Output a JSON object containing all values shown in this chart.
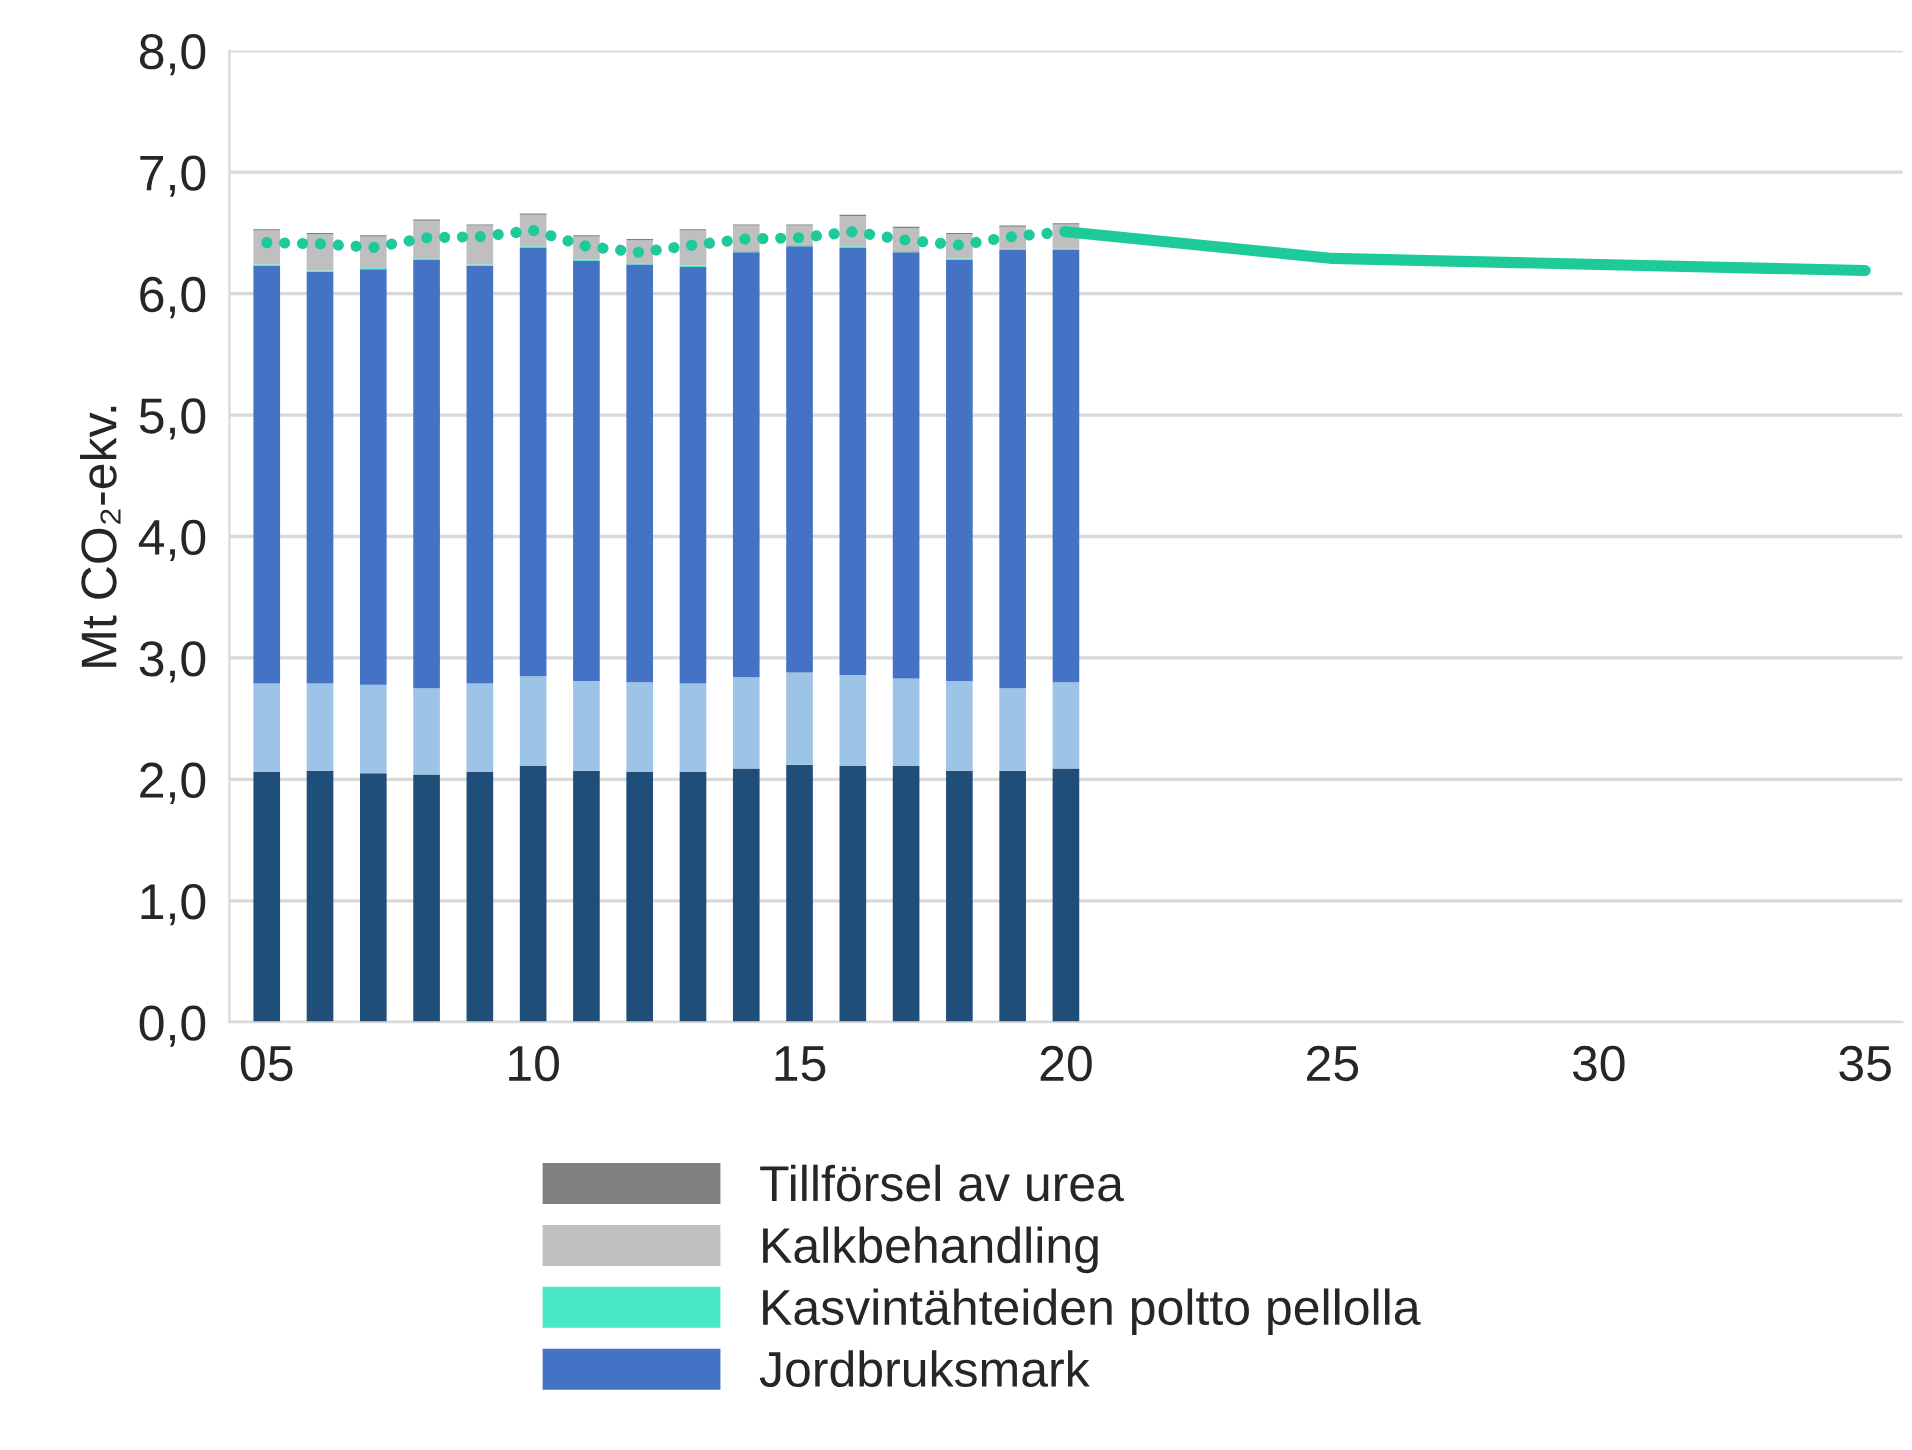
{
  "chart_data": {
    "type": "bar",
    "stacked": true,
    "ylabel": "Mt CO₂-ekv.",
    "x": [
      5,
      6,
      7,
      8,
      9,
      10,
      11,
      12,
      13,
      14,
      15,
      16,
      17,
      18,
      19,
      20
    ],
    "series": [
      {
        "color": "#1f4e79",
        "values": [
          2.06,
          2.07,
          2.05,
          2.04,
          2.06,
          2.11,
          2.07,
          2.06,
          2.06,
          2.09,
          2.12,
          2.11,
          2.11,
          2.07,
          2.07,
          2.09
        ]
      },
      {
        "color": "#9dc3e6",
        "values": [
          0.73,
          0.72,
          0.73,
          0.71,
          0.73,
          0.74,
          0.74,
          0.74,
          0.73,
          0.75,
          0.76,
          0.75,
          0.72,
          0.74,
          0.68,
          0.71
        ]
      },
      {
        "name": "Jordbruksmark",
        "color": "#4472c4",
        "values": [
          3.44,
          3.39,
          3.42,
          3.53,
          3.44,
          3.53,
          3.46,
          3.44,
          3.43,
          3.5,
          3.51,
          3.52,
          3.51,
          3.47,
          3.61,
          3.56
        ]
      },
      {
        "name": "Kasvintähteiden poltto pellolla",
        "color": "#48e8c4",
        "values": [
          0.01,
          0.01,
          0.01,
          0.01,
          0.01,
          0.01,
          0.01,
          0.01,
          0.01,
          0.01,
          0.01,
          0.01,
          0.01,
          0.01,
          0.01,
          0.01
        ]
      },
      {
        "name": "Kalkbehandling",
        "color": "#bfbfbf",
        "values": [
          0.28,
          0.3,
          0.26,
          0.31,
          0.32,
          0.26,
          0.19,
          0.19,
          0.29,
          0.21,
          0.16,
          0.25,
          0.19,
          0.2,
          0.18,
          0.2
        ]
      },
      {
        "name": "Tillförsel av urea",
        "color": "#808080",
        "values": [
          0.01,
          0.01,
          0.01,
          0.01,
          0.01,
          0.01,
          0.01,
          0.01,
          0.01,
          0.01,
          0.01,
          0.01,
          0.01,
          0.01,
          0.01,
          0.01
        ]
      },
      {
        "type": "line",
        "color": "#1ec99a",
        "line_style": "dotted",
        "x": [
          5,
          6,
          7,
          8,
          9,
          10,
          11,
          12,
          13,
          14,
          15,
          16,
          17,
          18,
          19,
          20
        ],
        "values": [
          6.42,
          6.41,
          6.38,
          6.46,
          6.47,
          6.52,
          6.39,
          6.34,
          6.4,
          6.45,
          6.46,
          6.51,
          6.44,
          6.4,
          6.47,
          6.51
        ]
      },
      {
        "type": "line",
        "color": "#1ec99a",
        "line_style": "solid",
        "x": [
          20,
          25,
          30,
          35
        ],
        "values": [
          6.51,
          6.29,
          6.24,
          6.19
        ]
      }
    ],
    "xlim": [
      4.3,
      35.7
    ],
    "xticks": [
      {
        "value": 5,
        "label": "05"
      },
      10,
      15,
      20,
      25,
      30,
      35
    ],
    "ylim": [
      0,
      8
    ],
    "yticks": [
      {
        "value": 0,
        "label": "0,0"
      },
      {
        "value": 1,
        "label": "1,0"
      },
      {
        "value": 2,
        "label": "2,0"
      },
      {
        "value": 3,
        "label": "3,0"
      },
      {
        "value": 4,
        "label": "4,0"
      },
      {
        "value": 5,
        "label": "5,0"
      },
      {
        "value": 6,
        "label": "6,0"
      },
      {
        "value": 7,
        "label": "7,0"
      },
      {
        "value": 8,
        "label": "8,0"
      }
    ],
    "grid": "y",
    "legend": "bottom"
  }
}
